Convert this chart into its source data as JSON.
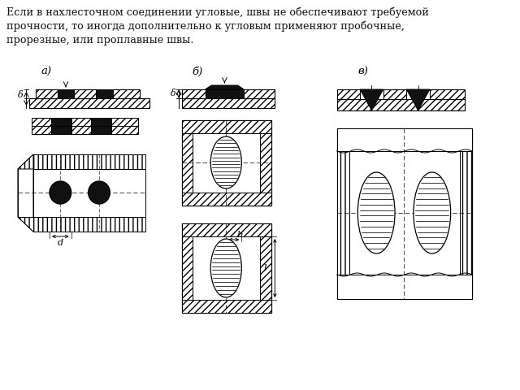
{
  "title_text": "Если в нахлесточном соединении угловые, швы не обеспечивают требуемой\nпрочности, то иногда дополнительно к угловым применяют пробочные,\nпрорезные, или проплавные швы.",
  "label_a": "а)",
  "label_b": "б)",
  "label_v": "в)",
  "bg_color": "#ffffff",
  "line_color": "#000000",
  "fill_dark": "#111111",
  "label_d": "d",
  "label_delta": "δ",
  "label_b_dim": "b",
  "label_l": "l"
}
